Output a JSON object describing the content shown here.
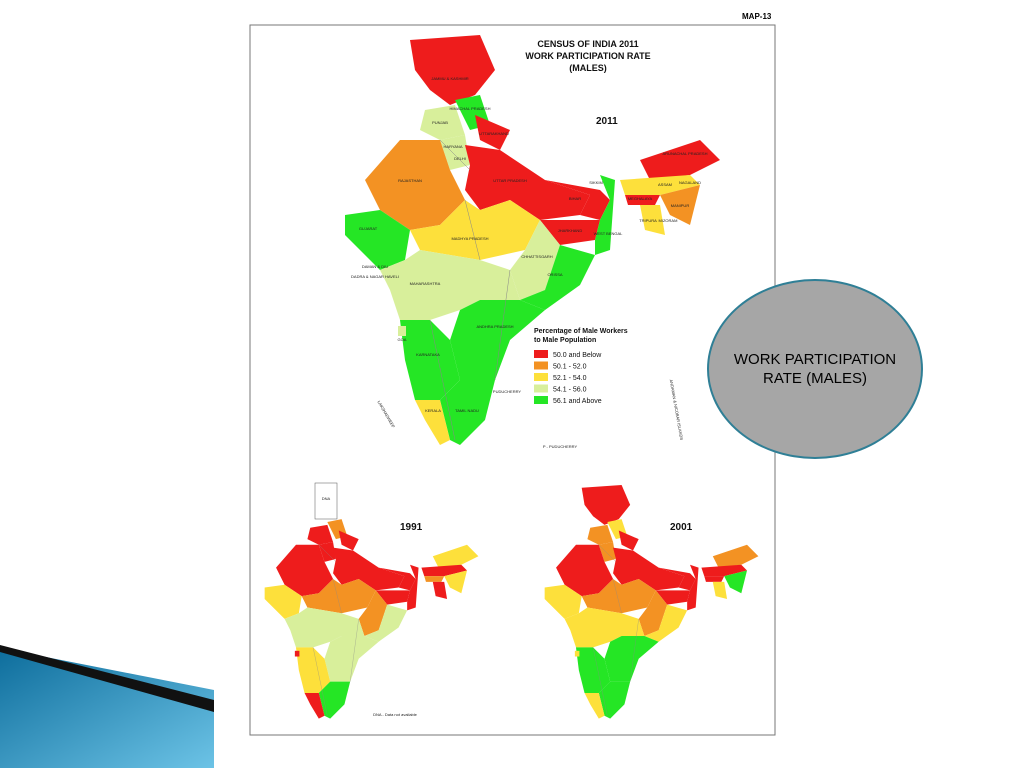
{
  "slide": {
    "map_label": "MAP-13",
    "title_lines": [
      "CENSUS OF INDIA 2011",
      "WORK PARTICIPATION RATE",
      "(MALES)"
    ],
    "callout": "WORK PARTICIPATION RATE (MALES)"
  },
  "maps": {
    "main_year": "2011",
    "small_years": [
      "1991",
      "2001"
    ],
    "legend": {
      "title_lines": [
        "Percentage of Male Workers",
        "to Male Population"
      ],
      "items": [
        {
          "label": "50.0 and Below",
          "color": "#ee1c1c"
        },
        {
          "label": "50.1 - 52.0",
          "color": "#f39223"
        },
        {
          "label": "52.1 - 54.0",
          "color": "#fde03b"
        },
        {
          "label": "54.1 - 56.0",
          "color": "#d8ef9b"
        },
        {
          "label": "56.1 and Above",
          "color": "#25e625"
        }
      ]
    },
    "state_labels": [
      "JAMMU & KASHMIR",
      "HIMACHAL PRADESH",
      "PUNJAB",
      "HARYANA",
      "UTTARAKHAND",
      "DELHI",
      "RAJASTHAN",
      "UTTAR PRADESH",
      "BIHAR",
      "SIKKIM",
      "ASSAM",
      "ARUNACHAL PRADESH",
      "NAGALAND",
      "MEGHALAYA",
      "MANIPUR",
      "TRIPURA",
      "MIZORAM",
      "GUJARAT",
      "MADHYA PRADESH",
      "JHARKHAND",
      "WEST BENGAL",
      "CHHATTISGARH",
      "ORISSA",
      "DAMAN & DIU",
      "DADRA & NAGAR HAVELI",
      "MAHARASHTRA",
      "ANDHRA PRADESH",
      "GOA",
      "KARNATAKA",
      "KERALA",
      "TAMIL NADU",
      "PUDUCHERRY",
      "LAKSHADWEEP",
      "ANDAMAN & NICOBAR ISLANDS"
    ],
    "footnotes": [
      "P - PUDUCHERRY",
      "DNA - Data not available",
      "DNA"
    ]
  }
}
